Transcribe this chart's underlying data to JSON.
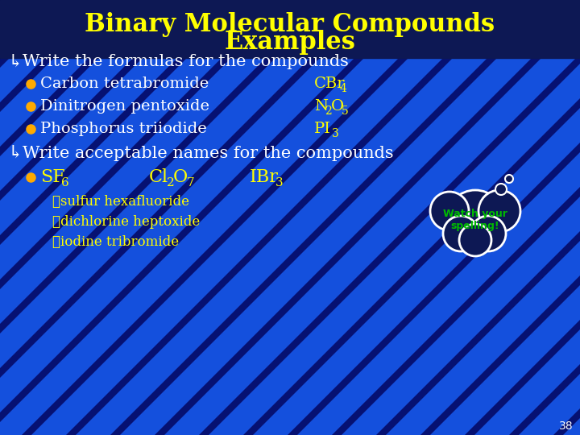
{
  "title_line1": "Binary Molecular Compounds",
  "title_line2": "Examples",
  "title_color": "#FFFF00",
  "bg_color": "#0d1854",
  "bg_color_main": "#0d1854",
  "white_color": "#FFFFFF",
  "yellow_color": "#FFFF00",
  "green_color": "#00BB00",
  "bullet_color": "#FFAA00",
  "slide_number": "38",
  "section1_header": "Write the formulas for the compounds",
  "section2_header": "Write acceptable names for the compounds",
  "sub_items": [
    "❖sulfur hexafluoride",
    "❖dichlorine heptoxide",
    "❖iodine tribromide"
  ],
  "watch_text": "Watch your\nspelling!",
  "stripe_color1": "#1a44cc",
  "stripe_color2": "#0a0f66",
  "stripe_bottom_light": "#1a66ee",
  "stripe_bottom_dark": "#050a44"
}
